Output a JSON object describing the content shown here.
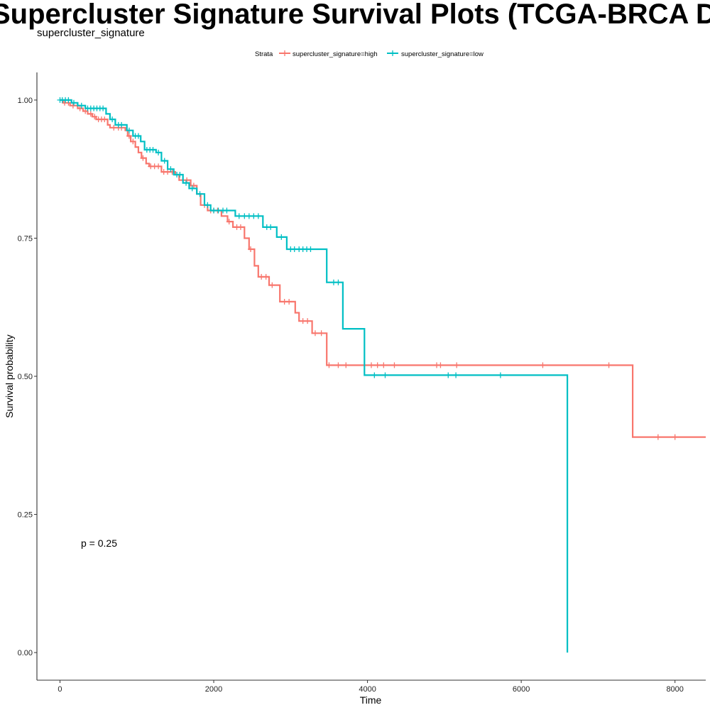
{
  "chart_data": {
    "type": "line",
    "title": "Supercluster Signature Survival Plots (TCGA-BRCA Deconvolved)",
    "subtitle": "supercluster_signature",
    "xlabel": "Time",
    "ylabel": "Survival probability",
    "xlim": [
      -300,
      8400
    ],
    "ylim": [
      -0.05,
      1.05
    ],
    "x_ticks": [
      0,
      2000,
      4000,
      6000,
      8000
    ],
    "y_ticks": [
      0.0,
      0.25,
      0.5,
      0.75,
      1.0
    ],
    "y_tick_labels": [
      "0.00",
      "0.25",
      "0.50",
      "0.75",
      "1.00"
    ],
    "grid": false,
    "legend": {
      "title": "Strata",
      "position": "top"
    },
    "annotation": "p = 0.25",
    "series": [
      {
        "name": "supercluster_signature=high",
        "color": "#F8766D",
        "steps": [
          [
            0,
            1.0
          ],
          [
            40,
            0.995
          ],
          [
            130,
            0.99
          ],
          [
            230,
            0.985
          ],
          [
            300,
            0.98
          ],
          [
            360,
            0.975
          ],
          [
            420,
            0.97
          ],
          [
            470,
            0.965
          ],
          [
            620,
            0.955
          ],
          [
            650,
            0.95
          ],
          [
            850,
            0.945
          ],
          [
            880,
            0.935
          ],
          [
            920,
            0.925
          ],
          [
            980,
            0.915
          ],
          [
            1020,
            0.905
          ],
          [
            1060,
            0.895
          ],
          [
            1120,
            0.885
          ],
          [
            1160,
            0.88
          ],
          [
            1320,
            0.87
          ],
          [
            1500,
            0.865
          ],
          [
            1550,
            0.855
          ],
          [
            1700,
            0.845
          ],
          [
            1780,
            0.83
          ],
          [
            1830,
            0.81
          ],
          [
            1920,
            0.8
          ],
          [
            2100,
            0.79
          ],
          [
            2180,
            0.78
          ],
          [
            2250,
            0.77
          ],
          [
            2400,
            0.75
          ],
          [
            2460,
            0.73
          ],
          [
            2530,
            0.7
          ],
          [
            2580,
            0.68
          ],
          [
            2720,
            0.665
          ],
          [
            2860,
            0.635
          ],
          [
            3060,
            0.615
          ],
          [
            3110,
            0.6
          ],
          [
            3280,
            0.578
          ],
          [
            3470,
            0.52
          ],
          [
            7450,
            0.39
          ]
        ],
        "end_x": 8400,
        "censors": [
          [
            60,
            0.995
          ],
          [
            110,
            0.995
          ],
          [
            170,
            0.99
          ],
          [
            260,
            0.985
          ],
          [
            330,
            0.98
          ],
          [
            400,
            0.975
          ],
          [
            450,
            0.97
          ],
          [
            500,
            0.965
          ],
          [
            540,
            0.965
          ],
          [
            580,
            0.965
          ],
          [
            700,
            0.95
          ],
          [
            760,
            0.95
          ],
          [
            800,
            0.95
          ],
          [
            900,
            0.935
          ],
          [
            950,
            0.925
          ],
          [
            1080,
            0.895
          ],
          [
            1180,
            0.88
          ],
          [
            1230,
            0.88
          ],
          [
            1280,
            0.88
          ],
          [
            1350,
            0.87
          ],
          [
            1400,
            0.87
          ],
          [
            1460,
            0.87
          ],
          [
            1600,
            0.855
          ],
          [
            1650,
            0.855
          ],
          [
            1740,
            0.845
          ],
          [
            1880,
            0.81
          ],
          [
            1960,
            0.8
          ],
          [
            2000,
            0.8
          ],
          [
            2050,
            0.8
          ],
          [
            2200,
            0.78
          ],
          [
            2300,
            0.77
          ],
          [
            2350,
            0.77
          ],
          [
            2480,
            0.73
          ],
          [
            2620,
            0.68
          ],
          [
            2680,
            0.68
          ],
          [
            2760,
            0.665
          ],
          [
            2920,
            0.635
          ],
          [
            2980,
            0.635
          ],
          [
            3160,
            0.6
          ],
          [
            3220,
            0.6
          ],
          [
            3320,
            0.578
          ],
          [
            3400,
            0.578
          ],
          [
            3500,
            0.52
          ],
          [
            3620,
            0.52
          ],
          [
            3720,
            0.52
          ],
          [
            4050,
            0.52
          ],
          [
            4130,
            0.52
          ],
          [
            4210,
            0.52
          ],
          [
            4350,
            0.52
          ],
          [
            4900,
            0.52
          ],
          [
            4950,
            0.52
          ],
          [
            5160,
            0.52
          ],
          [
            6280,
            0.52
          ],
          [
            7140,
            0.52
          ],
          [
            7780,
            0.39
          ],
          [
            8000,
            0.39
          ]
        ]
      },
      {
        "name": "supercluster_signature=low",
        "color": "#00BFC4",
        "steps": [
          [
            0,
            1.0
          ],
          [
            150,
            0.995
          ],
          [
            230,
            0.99
          ],
          [
            330,
            0.985
          ],
          [
            600,
            0.975
          ],
          [
            650,
            0.965
          ],
          [
            720,
            0.955
          ],
          [
            870,
            0.945
          ],
          [
            950,
            0.935
          ],
          [
            1050,
            0.925
          ],
          [
            1100,
            0.91
          ],
          [
            1250,
            0.905
          ],
          [
            1320,
            0.89
          ],
          [
            1400,
            0.875
          ],
          [
            1480,
            0.865
          ],
          [
            1600,
            0.85
          ],
          [
            1680,
            0.84
          ],
          [
            1780,
            0.83
          ],
          [
            1880,
            0.81
          ],
          [
            1960,
            0.8
          ],
          [
            2280,
            0.79
          ],
          [
            2640,
            0.77
          ],
          [
            2820,
            0.752
          ],
          [
            2950,
            0.73
          ],
          [
            3470,
            0.67
          ],
          [
            3680,
            0.586
          ],
          [
            3960,
            0.502
          ],
          [
            6600,
            0.0
          ]
        ],
        "end_x": 6600,
        "censors": [
          [
            0,
            1.0
          ],
          [
            30,
            1.0
          ],
          [
            70,
            1.0
          ],
          [
            110,
            1.0
          ],
          [
            180,
            0.995
          ],
          [
            280,
            0.99
          ],
          [
            360,
            0.985
          ],
          [
            400,
            0.985
          ],
          [
            440,
            0.985
          ],
          [
            480,
            0.985
          ],
          [
            520,
            0.985
          ],
          [
            560,
            0.985
          ],
          [
            680,
            0.965
          ],
          [
            760,
            0.955
          ],
          [
            800,
            0.955
          ],
          [
            900,
            0.945
          ],
          [
            980,
            0.935
          ],
          [
            1020,
            0.935
          ],
          [
            1130,
            0.91
          ],
          [
            1170,
            0.91
          ],
          [
            1210,
            0.91
          ],
          [
            1280,
            0.905
          ],
          [
            1360,
            0.89
          ],
          [
            1440,
            0.875
          ],
          [
            1520,
            0.865
          ],
          [
            1560,
            0.865
          ],
          [
            1640,
            0.85
          ],
          [
            1720,
            0.84
          ],
          [
            1820,
            0.83
          ],
          [
            1920,
            0.81
          ],
          [
            2000,
            0.8
          ],
          [
            2060,
            0.8
          ],
          [
            2120,
            0.8
          ],
          [
            2170,
            0.8
          ],
          [
            2330,
            0.79
          ],
          [
            2400,
            0.79
          ],
          [
            2460,
            0.79
          ],
          [
            2520,
            0.79
          ],
          [
            2580,
            0.79
          ],
          [
            2690,
            0.77
          ],
          [
            2740,
            0.77
          ],
          [
            2880,
            0.752
          ],
          [
            3000,
            0.73
          ],
          [
            3050,
            0.73
          ],
          [
            3110,
            0.73
          ],
          [
            3160,
            0.73
          ],
          [
            3210,
            0.73
          ],
          [
            3260,
            0.73
          ],
          [
            3560,
            0.67
          ],
          [
            3620,
            0.67
          ],
          [
            4090,
            0.502
          ],
          [
            4230,
            0.502
          ],
          [
            5050,
            0.502
          ],
          [
            5150,
            0.502
          ],
          [
            5730,
            0.502
          ]
        ]
      }
    ]
  }
}
